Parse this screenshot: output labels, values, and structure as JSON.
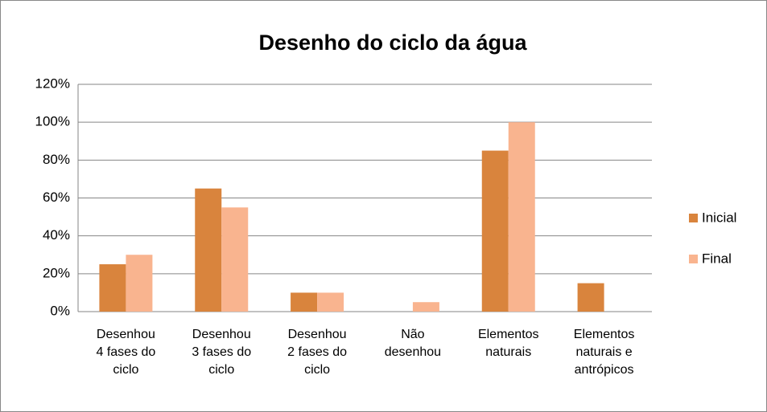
{
  "chart_data": {
    "type": "bar",
    "title": "Desenho do ciclo da água",
    "categories": [
      "Desenhou 4 fases do ciclo",
      "Desenhou 3 fases do ciclo",
      "Desenhou 2 fases do ciclo",
      "Não desenhou",
      "Elementos naturais",
      "Elementos naturais e antrópicos"
    ],
    "series": [
      {
        "name": "Inicial",
        "color": "#d9843d",
        "values": [
          25,
          65,
          10,
          0,
          85,
          15
        ]
      },
      {
        "name": "Final",
        "color": "#f9b48f",
        "values": [
          30,
          55,
          10,
          5,
          100,
          0
        ]
      }
    ],
    "ylim": [
      0,
      120
    ],
    "yticks": [
      {
        "value": 0,
        "label": "0%"
      },
      {
        "value": 20,
        "label": "20%"
      },
      {
        "value": 40,
        "label": "40%"
      },
      {
        "value": 60,
        "label": "60%"
      },
      {
        "value": 80,
        "label": "80%"
      },
      {
        "value": 100,
        "label": "100%"
      },
      {
        "value": 120,
        "label": "120%"
      }
    ],
    "grid": true,
    "legend": "right"
  }
}
